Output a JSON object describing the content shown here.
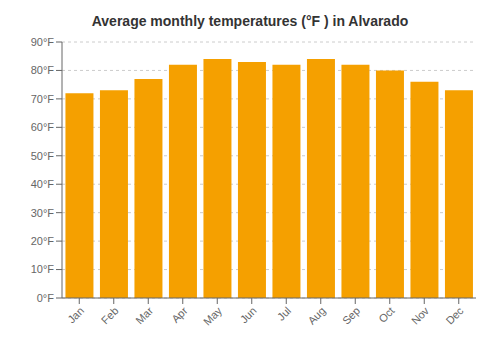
{
  "chart_data": {
    "type": "bar",
    "title": "Average monthly temperatures (°F ) in Alvarado",
    "categories": [
      "Jan",
      "Feb",
      "Mar",
      "Apr",
      "May",
      "Jun",
      "Jul",
      "Aug",
      "Sep",
      "Oct",
      "Nov",
      "Dec"
    ],
    "values": [
      72,
      73,
      77,
      82,
      84,
      83,
      82,
      84,
      82,
      80,
      76,
      73
    ],
    "color": "#F5A000",
    "ylim": [
      0,
      90
    ],
    "yticks": [
      {
        "value": 0,
        "label": "0°F"
      },
      {
        "value": 10,
        "label": "10°F"
      },
      {
        "value": 20,
        "label": "20°F"
      },
      {
        "value": 30,
        "label": "30°F"
      },
      {
        "value": 40,
        "label": "40°F"
      },
      {
        "value": 50,
        "label": "50°F"
      },
      {
        "value": 60,
        "label": "60°F"
      },
      {
        "value": 70,
        "label": "70°F"
      },
      {
        "value": 80,
        "label": "80°F"
      },
      {
        "value": 90,
        "label": "90°F"
      }
    ],
    "grid": true
  }
}
